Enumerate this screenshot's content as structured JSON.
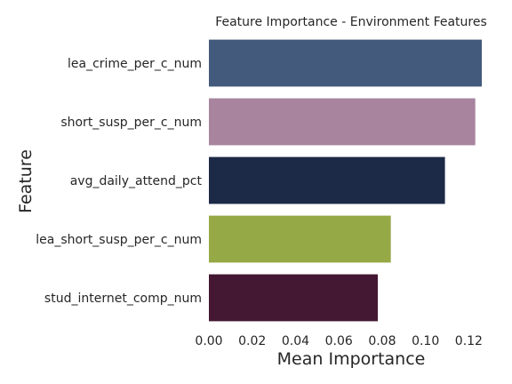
{
  "chart_data": {
    "type": "bar",
    "orientation": "horizontal",
    "title": "Feature Importance - Environment Features",
    "xlabel": "Mean Importance",
    "ylabel": "Feature",
    "xlim": [
      0,
      0.126
    ],
    "xticks": [
      0.0,
      0.02,
      0.04,
      0.06,
      0.08,
      0.1,
      0.12
    ],
    "xtick_labels": [
      "0.00",
      "0.02",
      "0.04",
      "0.06",
      "0.08",
      "0.10",
      "0.12"
    ],
    "grid": false,
    "categories": [
      "lea_crime_per_c_num",
      "short_susp_per_c_num",
      "avg_daily_attend_pct",
      "lea_short_susp_per_c_num",
      "stud_internet_comp_num"
    ],
    "values": [
      0.126,
      0.123,
      0.109,
      0.084,
      0.078
    ],
    "colors": [
      "#435a7d",
      "#a8849f",
      "#1c2947",
      "#95a946",
      "#441733"
    ]
  }
}
